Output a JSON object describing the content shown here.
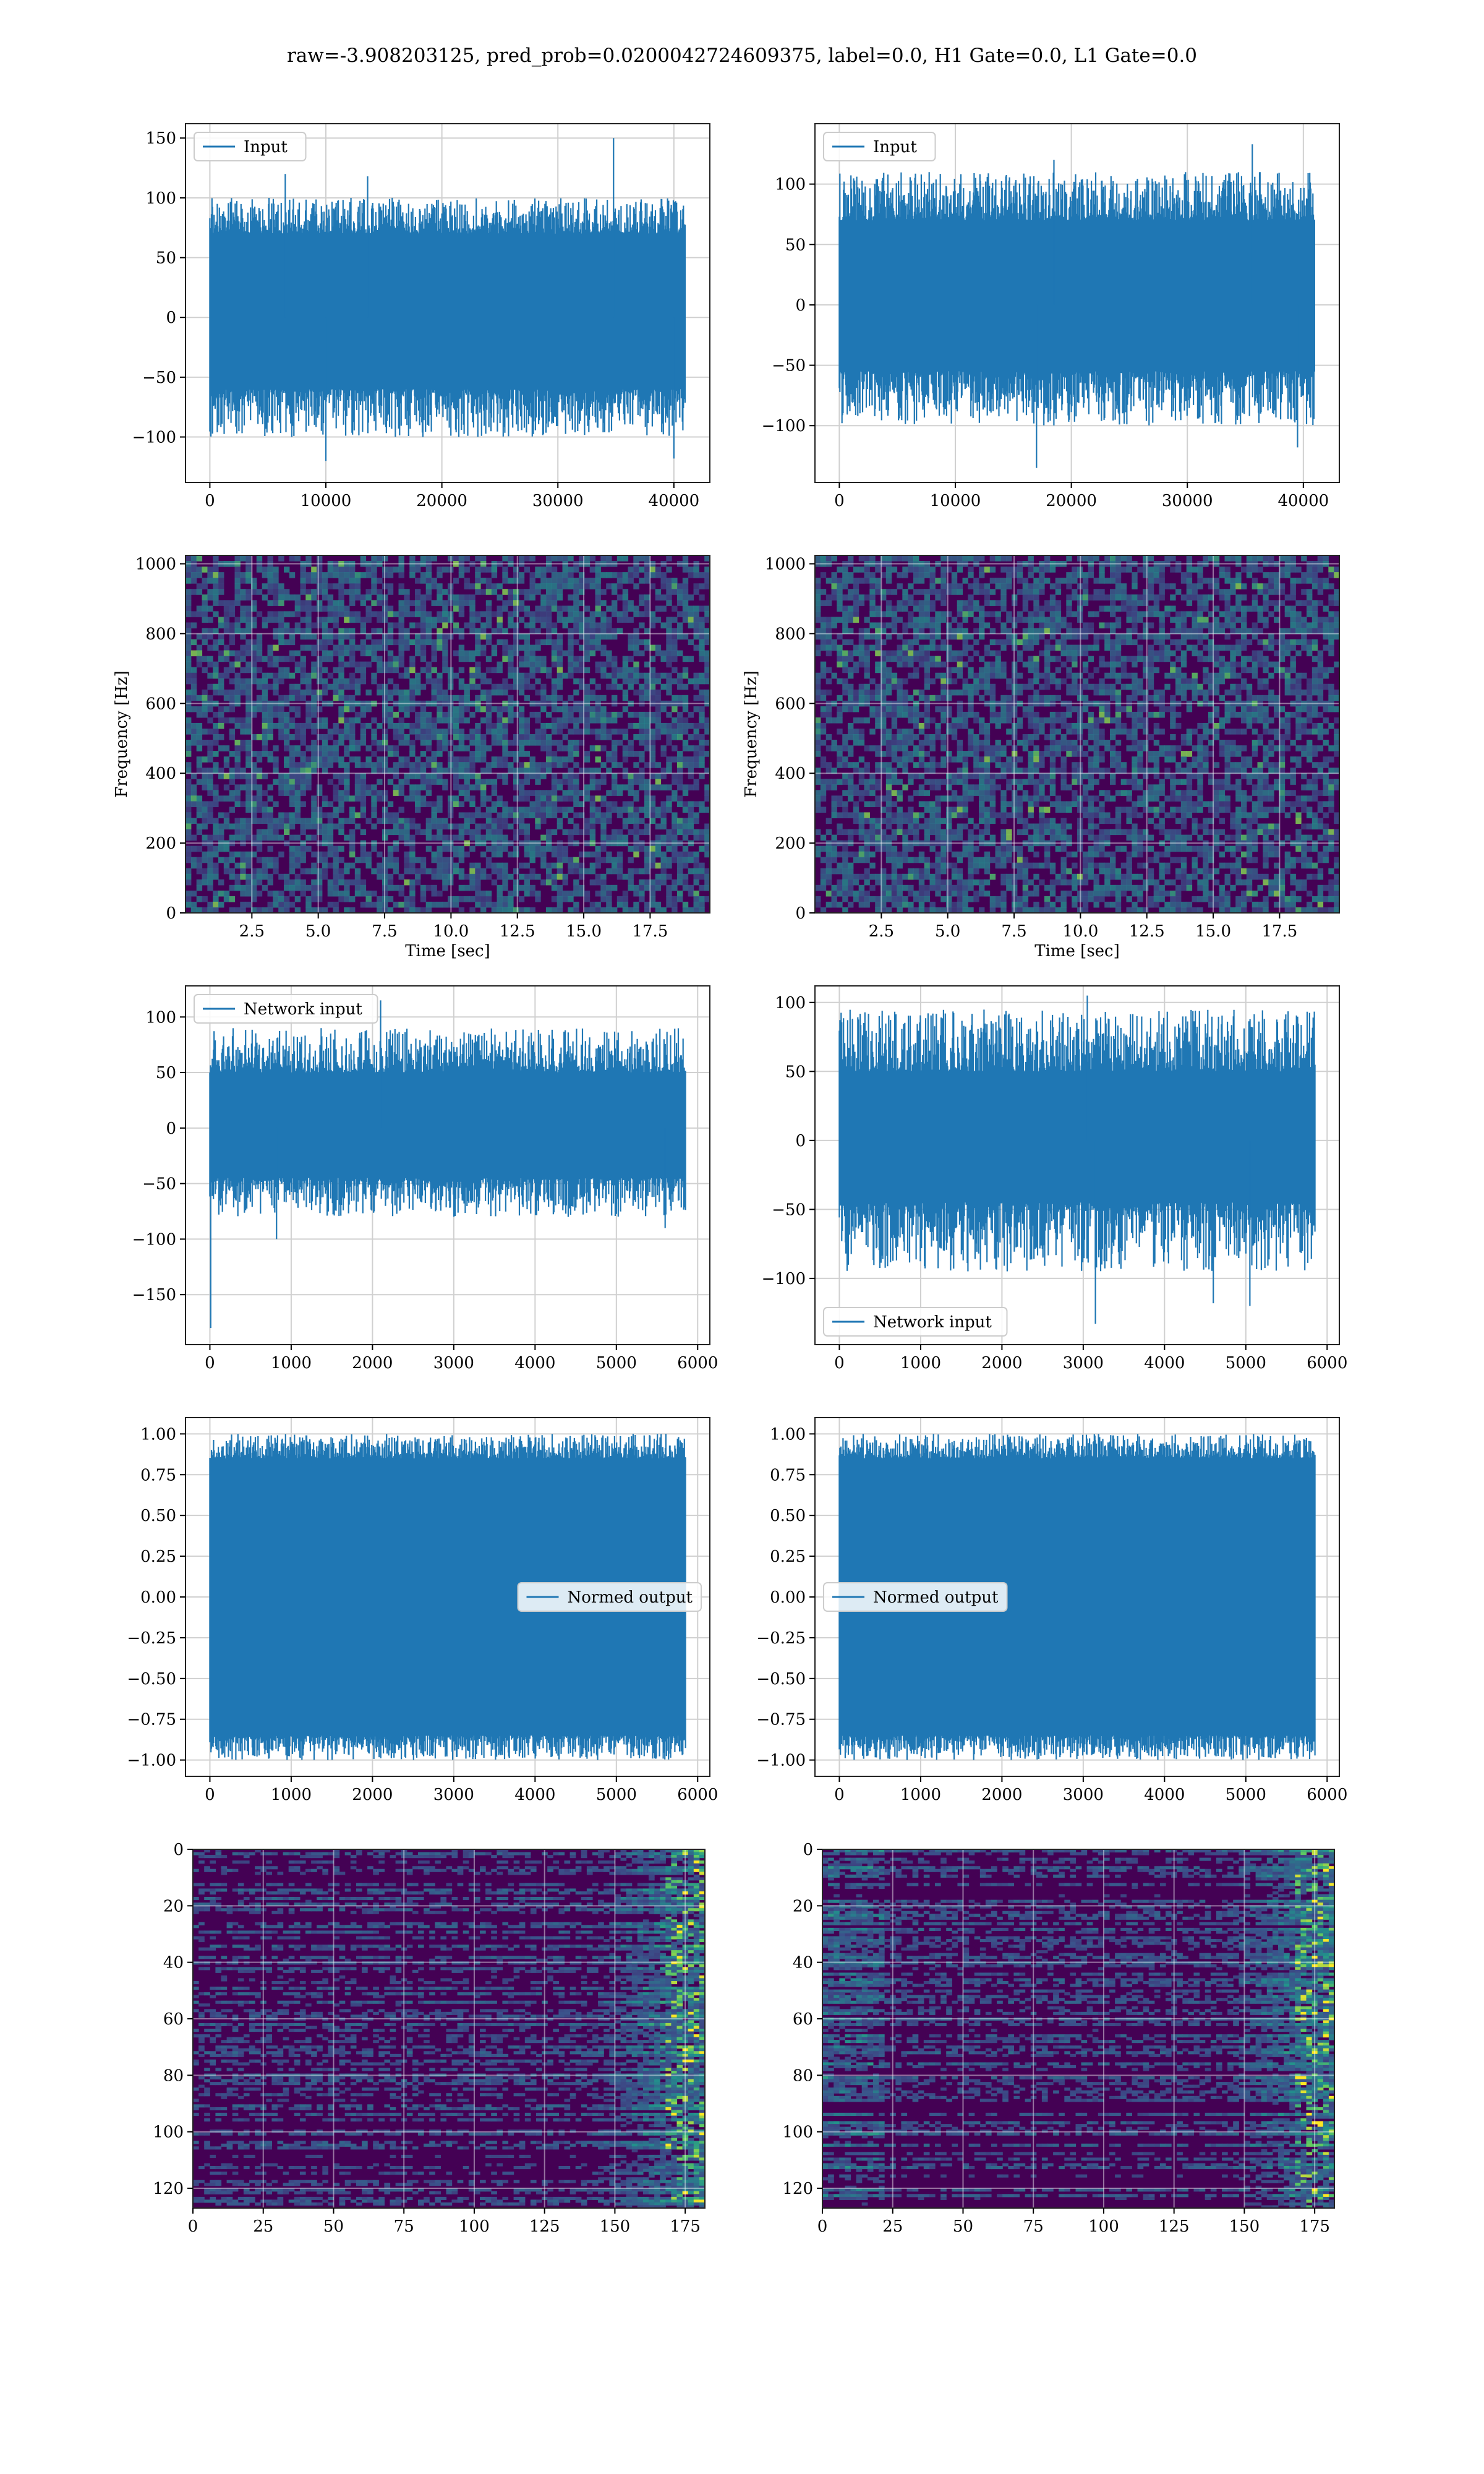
{
  "figure": {
    "title": "raw=-3.908203125, pred_prob=0.0200042724609375, label=0.0, H1 Gate=0.0, L1 Gate=0.0"
  },
  "colors": {
    "line": "#1f77b4",
    "grid": "#d0d0d0",
    "viridis_dark": "#440154",
    "viridis_mid": "#3b528b",
    "viridis_teal": "#21918c",
    "viridis_green": "#5ec962",
    "viridis_yellow": "#fde725"
  },
  "chart_data": [
    {
      "id": "r1c1",
      "type": "line",
      "legend": "Input",
      "legend_loc": "upper left",
      "xlim": [
        -2100,
        43100
      ],
      "ylim": [
        -138,
        162
      ],
      "xticks": [
        0,
        10000,
        20000,
        30000,
        40000
      ],
      "yticks": [
        -100,
        -50,
        0,
        50,
        100,
        150
      ],
      "xlabel": "",
      "ylabel": "",
      "signal": {
        "x_start": 0,
        "x_end": 40960,
        "n": 900,
        "amp_max": [
          70,
          100
        ],
        "amp_min": [
          -60,
          -100
        ],
        "spikes": [
          {
            "x": 34800,
            "y": 150
          },
          {
            "x": 6500,
            "y": 120
          },
          {
            "x": 13600,
            "y": 118
          },
          {
            "x": 10000,
            "y": -120
          },
          {
            "x": 40000,
            "y": -118
          }
        ],
        "grid": true
      }
    },
    {
      "id": "r1c2",
      "type": "line",
      "legend": "Input",
      "legend_loc": "upper left",
      "xlim": [
        -2100,
        43100
      ],
      "ylim": [
        -147,
        150
      ],
      "xticks": [
        0,
        10000,
        20000,
        30000,
        40000
      ],
      "yticks": [
        -100,
        -50,
        0,
        50,
        100
      ],
      "xlabel": "",
      "ylabel": "",
      "signal": {
        "x_start": 0,
        "x_end": 40960,
        "n": 900,
        "amp_max": [
          70,
          110
        ],
        "amp_min": [
          -55,
          -100
        ],
        "spikes": [
          {
            "x": 35600,
            "y": 133
          },
          {
            "x": 18500,
            "y": 120
          },
          {
            "x": 17000,
            "y": -135
          },
          {
            "x": 39500,
            "y": -118
          }
        ],
        "grid": true
      }
    },
    {
      "id": "r2c1",
      "type": "heatmap",
      "xlim": [
        0,
        19.75
      ],
      "ylim": [
        0,
        1024
      ],
      "xticks": [
        2.5,
        5.0,
        7.5,
        10.0,
        12.5,
        15.0,
        17.5
      ],
      "yticks": [
        0,
        200,
        400,
        600,
        800,
        1000
      ],
      "xlabel": "Time [sec]",
      "ylabel": "Frequency [Hz]",
      "colormap": "viridis",
      "grid": true
    },
    {
      "id": "r2c2",
      "type": "heatmap",
      "xlim": [
        0,
        19.75
      ],
      "ylim": [
        0,
        1024
      ],
      "xticks": [
        2.5,
        5.0,
        7.5,
        10.0,
        12.5,
        15.0,
        17.5
      ],
      "yticks": [
        0,
        200,
        400,
        600,
        800,
        1000
      ],
      "xlabel": "Time [sec]",
      "ylabel": "Frequency [Hz]",
      "colormap": "viridis",
      "grid": true
    },
    {
      "id": "r3c1",
      "type": "line",
      "legend": "Network input",
      "legend_loc": "upper left",
      "xlim": [
        -300,
        6150
      ],
      "ylim": [
        -195,
        128
      ],
      "xticks": [
        0,
        1000,
        2000,
        3000,
        4000,
        5000,
        6000
      ],
      "yticks": [
        -150,
        -100,
        -50,
        0,
        50,
        100
      ],
      "xlabel": "",
      "ylabel": "",
      "signal": {
        "x_start": 0,
        "x_end": 5850,
        "n": 800,
        "amp_max": [
          50,
          90
        ],
        "amp_min": [
          -45,
          -80
        ],
        "spikes": [
          {
            "x": 2100,
            "y": 115
          },
          {
            "x": 10,
            "y": -180
          },
          {
            "x": 820,
            "y": -100
          },
          {
            "x": 5600,
            "y": -90
          }
        ],
        "grid": true
      }
    },
    {
      "id": "r3c2",
      "type": "line",
      "legend": "Network input",
      "legend_loc": "lower left",
      "xlim": [
        -300,
        6150
      ],
      "ylim": [
        -148,
        112
      ],
      "xticks": [
        0,
        1000,
        2000,
        3000,
        4000,
        5000,
        6000
      ],
      "yticks": [
        -100,
        -50,
        0,
        50,
        100
      ],
      "xlabel": "",
      "ylabel": "",
      "signal": {
        "x_start": 0,
        "x_end": 5850,
        "n": 800,
        "amp_max": [
          50,
          95
        ],
        "amp_min": [
          -45,
          -95
        ],
        "spikes": [
          {
            "x": 3050,
            "y": 105
          },
          {
            "x": 3150,
            "y": -133
          },
          {
            "x": 4600,
            "y": -118
          },
          {
            "x": 5050,
            "y": -120
          }
        ],
        "grid": true
      }
    },
    {
      "id": "r4c1",
      "type": "line",
      "legend": "Normed output",
      "legend_loc": "center right",
      "xlim": [
        -300,
        6150
      ],
      "ylim": [
        -1.1,
        1.1
      ],
      "xticks": [
        0,
        1000,
        2000,
        3000,
        4000,
        5000,
        6000
      ],
      "yticks": [
        -1.0,
        -0.75,
        -0.5,
        -0.25,
        0.0,
        0.25,
        0.5,
        0.75,
        1.0
      ],
      "xlabel": "",
      "ylabel": "",
      "signal": {
        "x_start": 0,
        "x_end": 5850,
        "n": 900,
        "amp_max": [
          0.85,
          1.0
        ],
        "amp_min": [
          -0.85,
          -1.0
        ],
        "spikes": [],
        "grid": true
      }
    },
    {
      "id": "r4c2",
      "type": "line",
      "legend": "Normed output",
      "legend_loc": "center left",
      "xlim": [
        -300,
        6150
      ],
      "ylim": [
        -1.1,
        1.1
      ],
      "xticks": [
        0,
        1000,
        2000,
        3000,
        4000,
        5000,
        6000
      ],
      "yticks": [
        -1.0,
        -0.75,
        -0.5,
        -0.25,
        0.0,
        0.25,
        0.5,
        0.75,
        1.0
      ],
      "xlabel": "",
      "ylabel": "",
      "signal": {
        "x_start": 0,
        "x_end": 5850,
        "n": 900,
        "amp_max": [
          0.85,
          1.0
        ],
        "amp_min": [
          -0.85,
          -1.0
        ],
        "spikes": [],
        "grid": true
      }
    },
    {
      "id": "r5c1",
      "type": "heatmap",
      "xlim": [
        0,
        182
      ],
      "ylim": [
        127,
        0
      ],
      "xticks": [
        0,
        25,
        50,
        75,
        100,
        125,
        150,
        175
      ],
      "yticks": [
        0,
        20,
        40,
        60,
        80,
        100,
        120
      ],
      "xlabel": "",
      "ylabel": "",
      "colormap": "viridis",
      "grid": true,
      "structure": "rows-right-bright"
    },
    {
      "id": "r5c2",
      "type": "heatmap",
      "xlim": [
        0,
        182
      ],
      "ylim": [
        127,
        0
      ],
      "xticks": [
        0,
        25,
        50,
        75,
        100,
        125,
        150,
        175
      ],
      "yticks": [
        0,
        20,
        40,
        60,
        80,
        100,
        120
      ],
      "xlabel": "",
      "ylabel": "",
      "colormap": "viridis",
      "grid": true,
      "structure": "rows-left-right-bright"
    }
  ]
}
